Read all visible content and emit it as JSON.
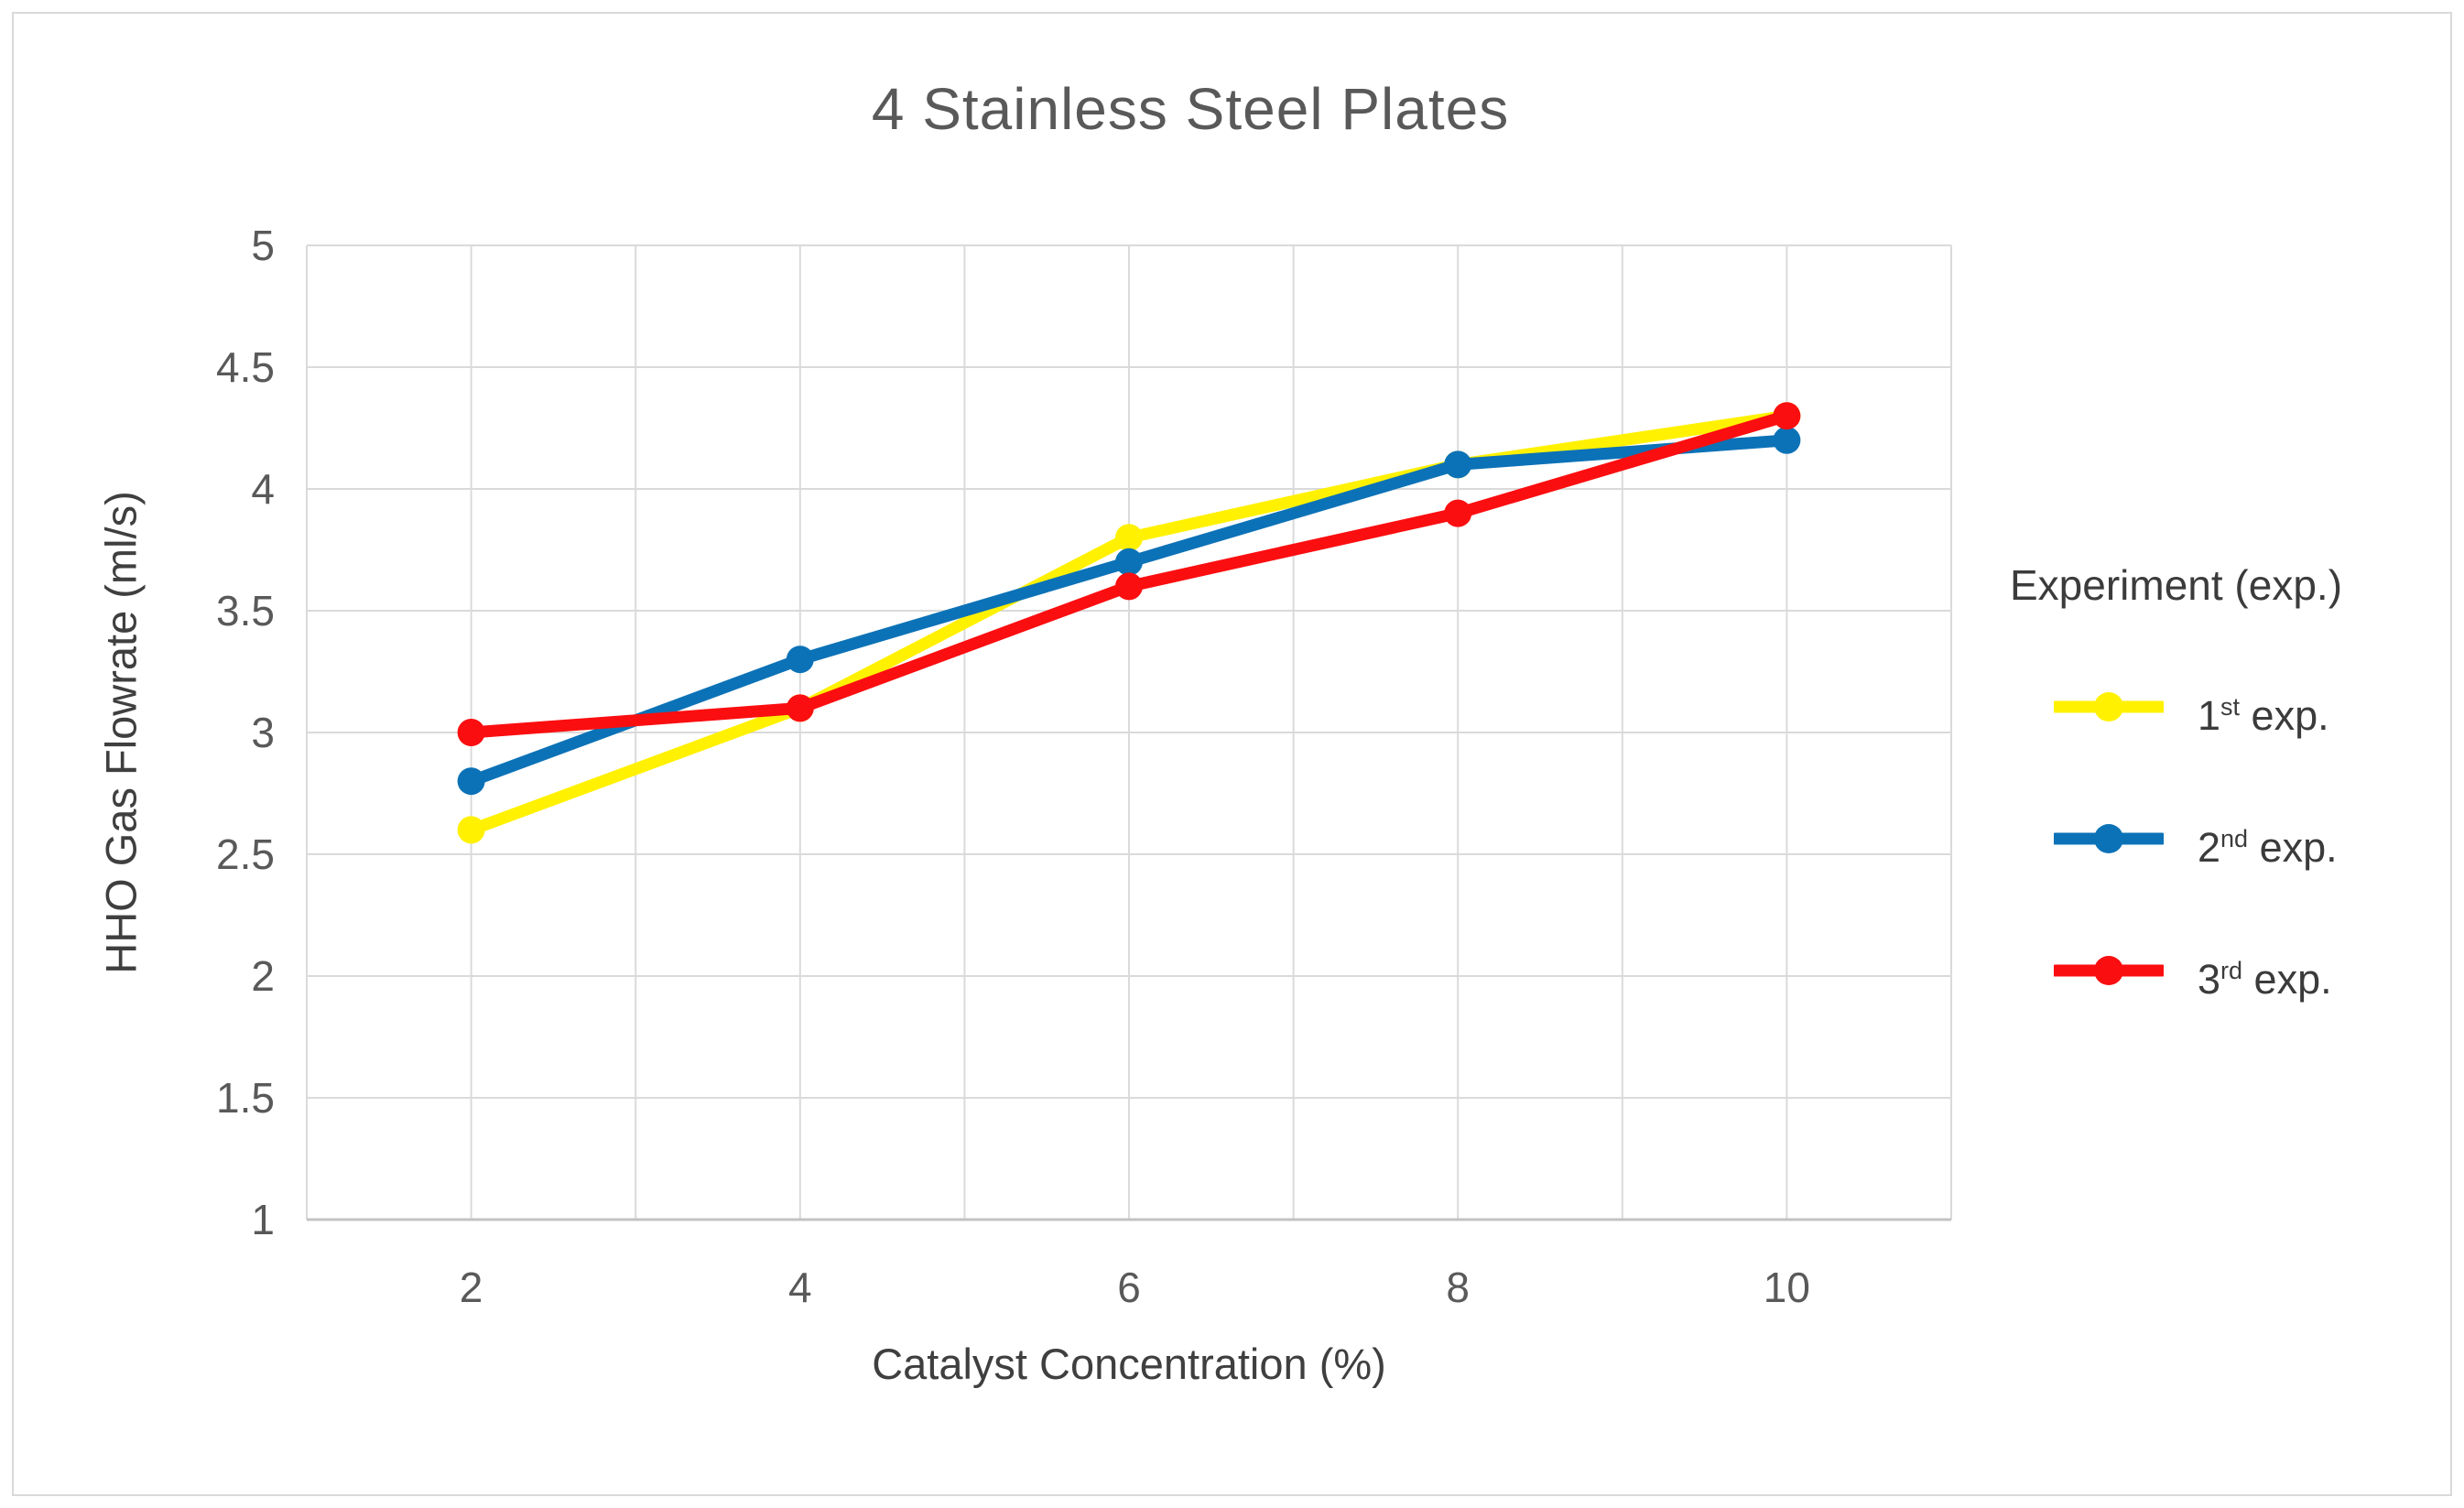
{
  "chart_data": {
    "type": "line",
    "title": "4 Stainless Steel Plates",
    "xlabel": "Catalyst Concentration (%)",
    "ylabel": "HHO Gas Flowrate (ml/s)",
    "x": [
      2,
      4,
      6,
      8,
      10
    ],
    "series": [
      {
        "name": "1st exp.",
        "ordinal": "1",
        "ordinal_suffix": "st",
        "label_rest": "exp.",
        "color": "#FFF100",
        "values": [
          2.6,
          3.1,
          3.8,
          4.1,
          4.3
        ]
      },
      {
        "name": "2nd exp.",
        "ordinal": "2",
        "ordinal_suffix": "nd",
        "label_rest": "exp.",
        "color": "#0C72B7",
        "values": [
          2.8,
          3.3,
          3.7,
          4.1,
          4.2
        ]
      },
      {
        "name": "3rd exp.",
        "ordinal": "3",
        "ordinal_suffix": "rd",
        "label_rest": "exp.",
        "color": "#FB0E10",
        "values": [
          3.0,
          3.1,
          3.6,
          3.9,
          4.3
        ]
      }
    ],
    "x_axis": {
      "min": 1,
      "max": 11,
      "gridline_step": 1,
      "tick_values": [
        2,
        4,
        6,
        8,
        10
      ],
      "tick_labels": [
        "2",
        "4",
        "6",
        "8",
        "10"
      ]
    },
    "y_axis": {
      "min": 1,
      "max": 5,
      "step": 0.5,
      "tick_values": [
        5,
        4.5,
        4,
        3.5,
        3,
        2.5,
        2,
        1.5,
        1
      ],
      "tick_labels": [
        "5",
        "4.5",
        "4",
        "3.5",
        "3",
        "2.5",
        "2",
        "1.5",
        "1"
      ]
    },
    "grid": true,
    "legend": {
      "title": "Experiment (exp.)",
      "position": "right"
    }
  },
  "colors": {
    "gridline": "#DADADA",
    "axis_line": "#C3C3C3",
    "title_text": "#595959",
    "tick_text": "#595959",
    "border": "#D9D9D9"
  }
}
